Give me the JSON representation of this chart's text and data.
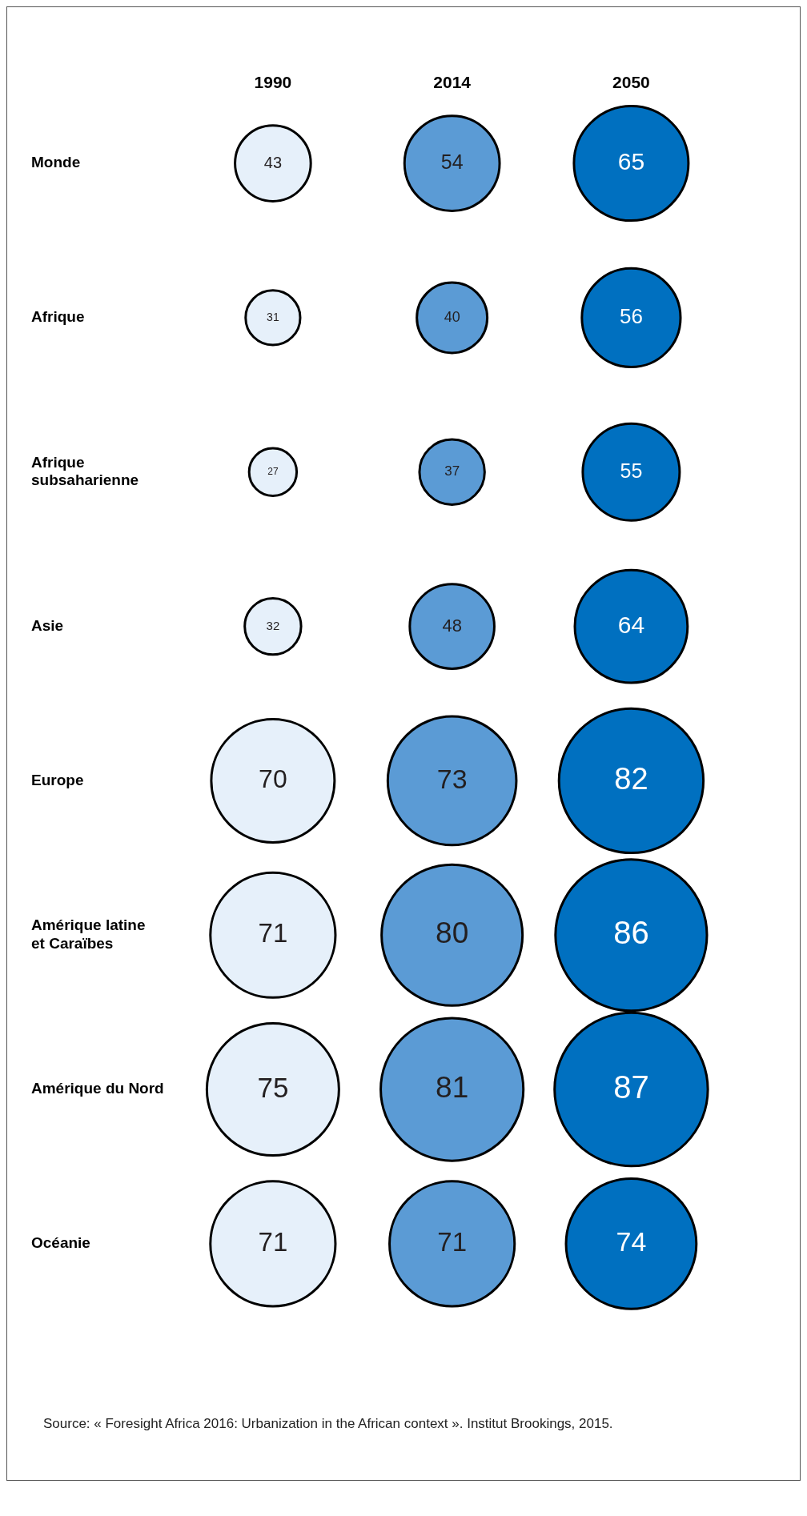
{
  "chart_data": {
    "type": "other",
    "categories": [
      "Monde",
      "Afrique",
      "Afrique subsaharienne",
      "Asie",
      "Europe",
      "Amérique latine et Caraïbes",
      "Amérique du Nord",
      "Océanie"
    ],
    "series": [
      {
        "name": "1990",
        "color": "#e6f0fa",
        "values": [
          43,
          31,
          27,
          32,
          70,
          71,
          75,
          71
        ]
      },
      {
        "name": "2014",
        "color": "#5b9bd5",
        "values": [
          54,
          40,
          37,
          48,
          73,
          80,
          81,
          71
        ]
      },
      {
        "name": "2050",
        "color": "#0070c0",
        "values": [
          65,
          56,
          55,
          64,
          82,
          86,
          87,
          74
        ]
      }
    ],
    "data_labels": true,
    "legend": false,
    "annotations": [
      "Source: « Foresight Africa 2016: Urbanization in the African context ». Institut Brookings, 2015."
    ]
  }
}
